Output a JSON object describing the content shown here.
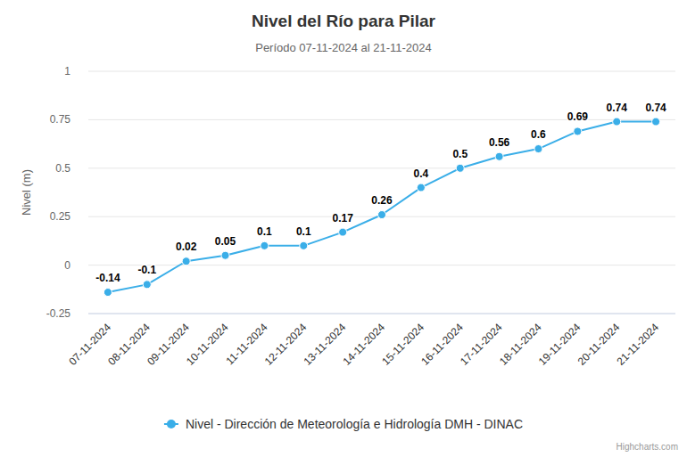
{
  "chart_data": {
    "type": "line",
    "title": "Nivel del Río para Pilar",
    "subtitle": "Período 07-11-2024 al 21-11-2024",
    "y_label": "Nivel (m)",
    "credits": "Highcharts.com",
    "categories": [
      "07-11-2024",
      "08-11-2024",
      "09-11-2024",
      "10-11-2024",
      "11-11-2024",
      "12-11-2024",
      "13-11-2024",
      "14-11-2024",
      "15-11-2024",
      "16-11-2024",
      "17-11-2024",
      "18-11-2024",
      "19-11-2024",
      "20-11-2024",
      "21-11-2024"
    ],
    "series": [
      {
        "name": "Nivel - Dirección de Meteorología e Hidrología DMH - DINAC",
        "color": "#3aaee8",
        "marker": "circle",
        "values": [
          -0.14,
          -0.1,
          0.02,
          0.05,
          0.1,
          0.1,
          0.17,
          0.26,
          0.4,
          0.5,
          0.56,
          0.6,
          0.69,
          0.74,
          0.74
        ]
      }
    ],
    "ylim": [
      -0.25,
      1
    ],
    "yticks": [
      -0.25,
      0,
      0.25,
      0.5,
      0.75,
      1
    ],
    "grid": true,
    "legend": "bottom",
    "data_labels": true
  }
}
